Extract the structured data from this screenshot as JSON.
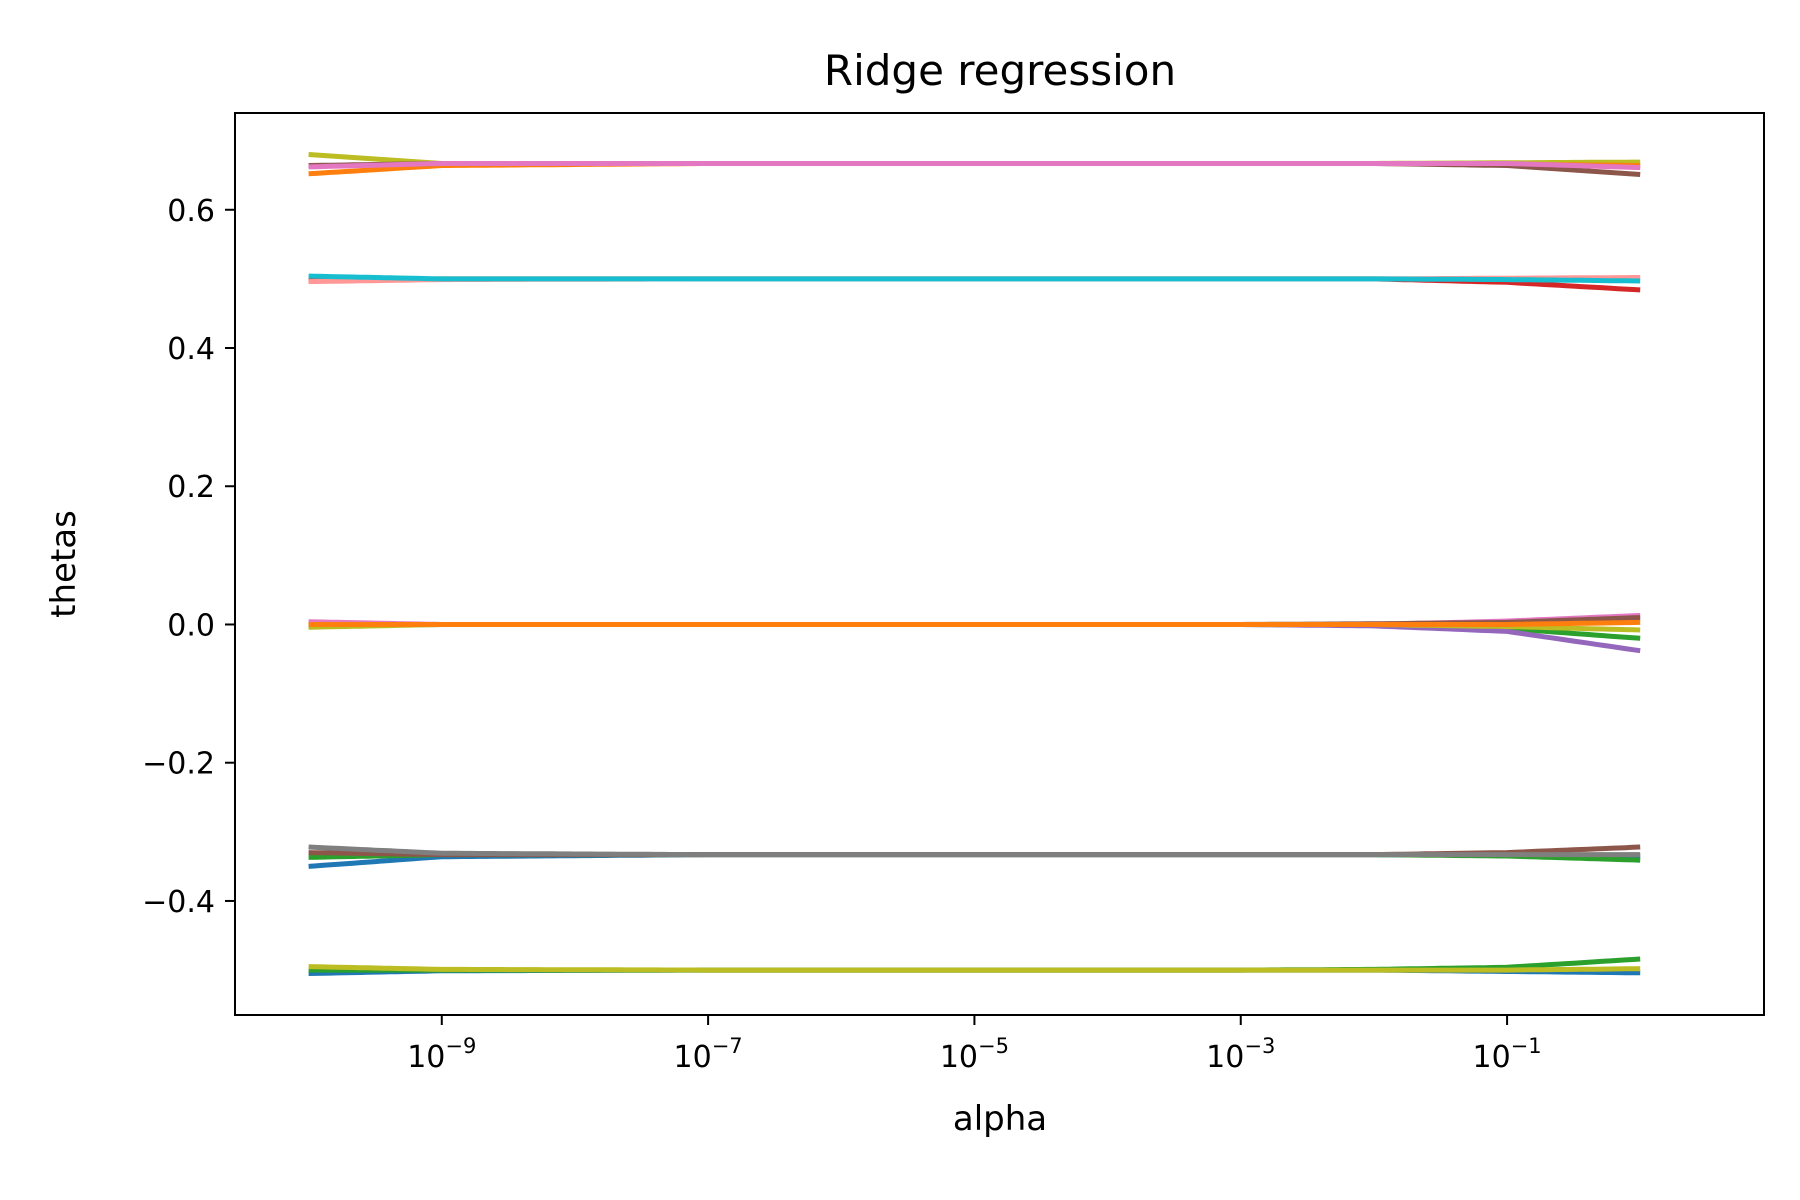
{
  "chart_data": {
    "type": "line",
    "title": "Ridge regression",
    "xlabel": "alpha",
    "ylabel": "thetas",
    "x_scale": "log",
    "xlim": [
      2.8e-11,
      8.5
    ],
    "ylim": [
      -0.565,
      0.74
    ],
    "x_ticks": [
      {
        "value": 1e-09,
        "base": "10",
        "exp": "−9"
      },
      {
        "value": 1e-07,
        "base": "10",
        "exp": "−7"
      },
      {
        "value": 1e-05,
        "base": "10",
        "exp": "−5"
      },
      {
        "value": 0.001,
        "base": "10",
        "exp": "−3"
      },
      {
        "value": 0.1,
        "base": "10",
        "exp": "−1"
      }
    ],
    "y_ticks": [
      {
        "value": 0.6,
        "label": "0.6"
      },
      {
        "value": 0.4,
        "label": "0.4"
      },
      {
        "value": 0.2,
        "label": "0.2"
      },
      {
        "value": 0.0,
        "label": "0.0"
      },
      {
        "value": -0.2,
        "label": "−0.2"
      },
      {
        "value": -0.4,
        "label": "−0.4"
      }
    ],
    "grid": false,
    "legend": "none",
    "x": [
      1e-10,
      1e-09,
      1e-07,
      1e-05,
      0.001,
      0.01,
      0.1,
      1.0
    ],
    "series": [
      {
        "color": "#bcbd22",
        "values": [
          0.68,
          0.667,
          0.667,
          0.667,
          0.667,
          0.667,
          0.668,
          0.669
        ]
      },
      {
        "color": "#ff7f0e",
        "values": [
          0.652,
          0.664,
          0.667,
          0.667,
          0.667,
          0.667,
          0.666,
          0.664
        ]
      },
      {
        "color": "#8c564b",
        "values": [
          0.664,
          0.667,
          0.667,
          0.667,
          0.667,
          0.667,
          0.664,
          0.651
        ]
      },
      {
        "color": "#e377c2",
        "values": [
          0.662,
          0.667,
          0.667,
          0.667,
          0.667,
          0.667,
          0.667,
          0.661
        ]
      },
      {
        "color": "#d62728",
        "values": [
          0.498,
          0.5,
          0.5,
          0.5,
          0.5,
          0.5,
          0.495,
          0.484
        ]
      },
      {
        "color": "#ff9896",
        "values": [
          0.496,
          0.499,
          0.5,
          0.5,
          0.5,
          0.5,
          0.501,
          0.502
        ]
      },
      {
        "color": "#17becf",
        "values": [
          0.504,
          0.5,
          0.5,
          0.5,
          0.5,
          0.5,
          0.499,
          0.497
        ]
      },
      {
        "color": "#e377c2",
        "values": [
          0.004,
          0.0,
          0.0,
          0.0,
          0.0,
          0.0,
          0.005,
          0.013
        ]
      },
      {
        "color": "#2ca02c",
        "values": [
          -0.002,
          0.0,
          0.0,
          0.0,
          0.0,
          -0.001,
          -0.006,
          -0.02
        ]
      },
      {
        "color": "#9467bd",
        "values": [
          0.0,
          0.0,
          0.0,
          0.0,
          0.0,
          -0.002,
          -0.01,
          -0.038
        ]
      },
      {
        "color": "#8c564b",
        "values": [
          0.0,
          0.0,
          0.0,
          0.0,
          0.0,
          0.001,
          0.003,
          0.01
        ]
      },
      {
        "color": "#bcbd22",
        "values": [
          -0.004,
          0.0,
          0.0,
          0.0,
          0.0,
          0.0,
          -0.003,
          -0.008
        ]
      },
      {
        "color": "#ff7f0e",
        "values": [
          0.0,
          0.0,
          0.0,
          0.0,
          0.0,
          0.0,
          0.0,
          0.003
        ]
      },
      {
        "color": "#1f77b4",
        "values": [
          -0.35,
          -0.336,
          -0.333,
          -0.333,
          -0.333,
          -0.333,
          -0.334,
          -0.336
        ]
      },
      {
        "color": "#2ca02c",
        "values": [
          -0.337,
          -0.333,
          -0.333,
          -0.333,
          -0.333,
          -0.333,
          -0.335,
          -0.341
        ]
      },
      {
        "color": "#8c564b",
        "values": [
          -0.33,
          -0.333,
          -0.333,
          -0.333,
          -0.333,
          -0.333,
          -0.33,
          -0.322
        ]
      },
      {
        "color": "#7f7f7f",
        "values": [
          -0.322,
          -0.331,
          -0.333,
          -0.333,
          -0.333,
          -0.333,
          -0.333,
          -0.333
        ]
      },
      {
        "color": "#1f77b4",
        "values": [
          -0.505,
          -0.501,
          -0.5,
          -0.5,
          -0.5,
          -0.5,
          -0.502,
          -0.504
        ]
      },
      {
        "color": "#2ca02c",
        "values": [
          -0.5,
          -0.5,
          -0.5,
          -0.5,
          -0.5,
          -0.499,
          -0.496,
          -0.484
        ]
      },
      {
        "color": "#bcbd22",
        "values": [
          -0.495,
          -0.499,
          -0.5,
          -0.5,
          -0.5,
          -0.5,
          -0.5,
          -0.498
        ]
      }
    ]
  }
}
